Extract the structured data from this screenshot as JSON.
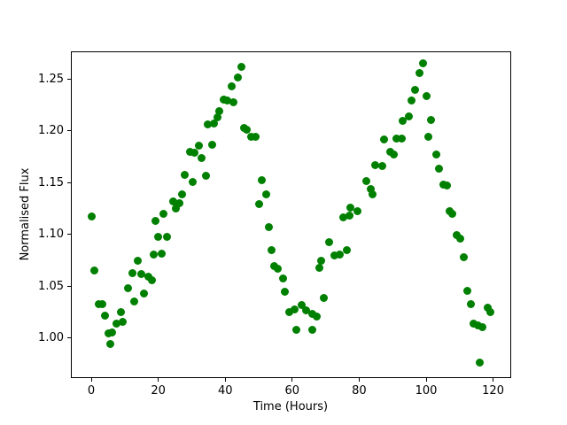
{
  "figure": {
    "background": "#ffffff",
    "text_color": "#000000"
  },
  "chart_data": {
    "type": "scatter",
    "title": "",
    "xlabel": "Time (Hours)",
    "ylabel": "Normalised Flux",
    "xlim": [
      -6.1,
      125.4
    ],
    "ylim": [
      0.961,
      1.277
    ],
    "x_tick_labels": [
      "0",
      "20",
      "40",
      "60",
      "80",
      "100",
      "120"
    ],
    "y_tick_labels": [
      "1.00",
      "1.05",
      "1.10",
      "1.15",
      "1.20",
      "1.25"
    ],
    "grid": false,
    "legend": "none",
    "series": [
      {
        "name": "normalised-flux-points",
        "marker": "circle",
        "color": "#008000",
        "points": [
          [
            0.0,
            1.1177
          ],
          [
            0.8,
            1.0653
          ],
          [
            2.2,
            1.0326
          ],
          [
            3.1,
            1.0326
          ],
          [
            4.0,
            1.0218
          ],
          [
            5.1,
            1.0049
          ],
          [
            5.6,
            0.9948
          ],
          [
            6.2,
            1.0059
          ],
          [
            7.5,
            1.0138
          ],
          [
            8.6,
            1.0252
          ],
          [
            9.3,
            1.0158
          ],
          [
            10.9,
            1.0484
          ],
          [
            12.1,
            1.0628
          ],
          [
            12.8,
            1.0356
          ],
          [
            13.8,
            1.0751
          ],
          [
            14.8,
            1.0619
          ],
          [
            15.7,
            1.0432
          ],
          [
            17.0,
            1.0593
          ],
          [
            17.9,
            1.0564
          ],
          [
            18.5,
            1.0811
          ],
          [
            19.0,
            1.1137
          ],
          [
            19.7,
            1.0979
          ],
          [
            20.8,
            1.0821
          ],
          [
            21.3,
            1.1206
          ],
          [
            22.5,
            1.0979
          ],
          [
            24.3,
            1.1321
          ],
          [
            25.0,
            1.1256
          ],
          [
            26.2,
            1.1305
          ],
          [
            26.9,
            1.1394
          ],
          [
            27.8,
            1.1582
          ],
          [
            29.4,
            1.18
          ],
          [
            30.2,
            1.1513
          ],
          [
            30.8,
            1.179
          ],
          [
            32.0,
            1.1859
          ],
          [
            32.8,
            1.174
          ],
          [
            34.1,
            1.1569
          ],
          [
            34.6,
            1.2067
          ],
          [
            35.9,
            1.1869
          ],
          [
            36.5,
            1.2075
          ],
          [
            37.5,
            1.2136
          ],
          [
            38.2,
            1.2195
          ],
          [
            39.3,
            1.2309
          ],
          [
            40.5,
            1.23
          ],
          [
            41.9,
            1.2432
          ],
          [
            42.4,
            1.2286
          ],
          [
            43.7,
            1.2524
          ],
          [
            44.8,
            1.2625
          ],
          [
            45.4,
            1.2032
          ],
          [
            46.2,
            1.2015
          ],
          [
            47.5,
            1.1946
          ],
          [
            49.0,
            1.1952
          ],
          [
            50.0,
            1.1301
          ],
          [
            50.9,
            1.1531
          ],
          [
            52.0,
            1.1387
          ],
          [
            52.9,
            1.1078
          ],
          [
            53.7,
            1.085
          ],
          [
            54.6,
            1.0699
          ],
          [
            55.6,
            1.0672
          ],
          [
            57.1,
            1.0574
          ],
          [
            57.6,
            1.0445
          ],
          [
            59.1,
            1.0252
          ],
          [
            60.6,
            1.0275
          ],
          [
            61.1,
            1.0079
          ],
          [
            62.6,
            1.0318
          ],
          [
            64.1,
            1.0269
          ],
          [
            65.9,
            1.0232
          ],
          [
            65.9,
            1.0079
          ],
          [
            67.3,
            1.0213
          ],
          [
            68.0,
            1.0682
          ],
          [
            68.6,
            1.0752
          ],
          [
            69.3,
            1.039
          ],
          [
            70.9,
            1.0929
          ],
          [
            72.4,
            1.0797
          ],
          [
            74.2,
            1.0808
          ],
          [
            75.2,
            1.1167
          ],
          [
            76.2,
            1.0854
          ],
          [
            77.0,
            1.1187
          ],
          [
            77.2,
            1.1266
          ],
          [
            79.3,
            1.1232
          ],
          [
            82.0,
            1.1516
          ],
          [
            83.4,
            1.1444
          ],
          [
            83.9,
            1.1394
          ],
          [
            84.7,
            1.1671
          ],
          [
            86.7,
            1.1666
          ],
          [
            87.3,
            1.1918
          ],
          [
            89.1,
            1.18
          ],
          [
            90.2,
            1.178
          ],
          [
            90.9,
            1.1928
          ],
          [
            92.6,
            1.1928
          ],
          [
            92.8,
            1.21
          ],
          [
            94.6,
            1.2147
          ],
          [
            95.4,
            1.2302
          ],
          [
            96.6,
            1.2405
          ],
          [
            97.9,
            1.2568
          ],
          [
            99.0,
            1.2662
          ],
          [
            99.9,
            1.2338
          ],
          [
            100.4,
            1.1946
          ],
          [
            101.3,
            1.2109
          ],
          [
            102.8,
            1.1774
          ],
          [
            103.7,
            1.1642
          ],
          [
            105.0,
            1.1483
          ],
          [
            106.1,
            1.1473
          ],
          [
            106.8,
            1.1226
          ],
          [
            107.7,
            1.1206
          ],
          [
            108.9,
            1.0999
          ],
          [
            110.1,
            1.0959
          ],
          [
            111.1,
            1.0781
          ],
          [
            112.2,
            1.0455
          ],
          [
            113.1,
            1.0326
          ],
          [
            114.0,
            1.0137
          ],
          [
            115.3,
            1.0127
          ],
          [
            116.0,
            0.9765
          ],
          [
            116.7,
            1.0103
          ],
          [
            118.2,
            1.0297
          ],
          [
            119.1,
            1.0255
          ]
        ]
      }
    ]
  }
}
